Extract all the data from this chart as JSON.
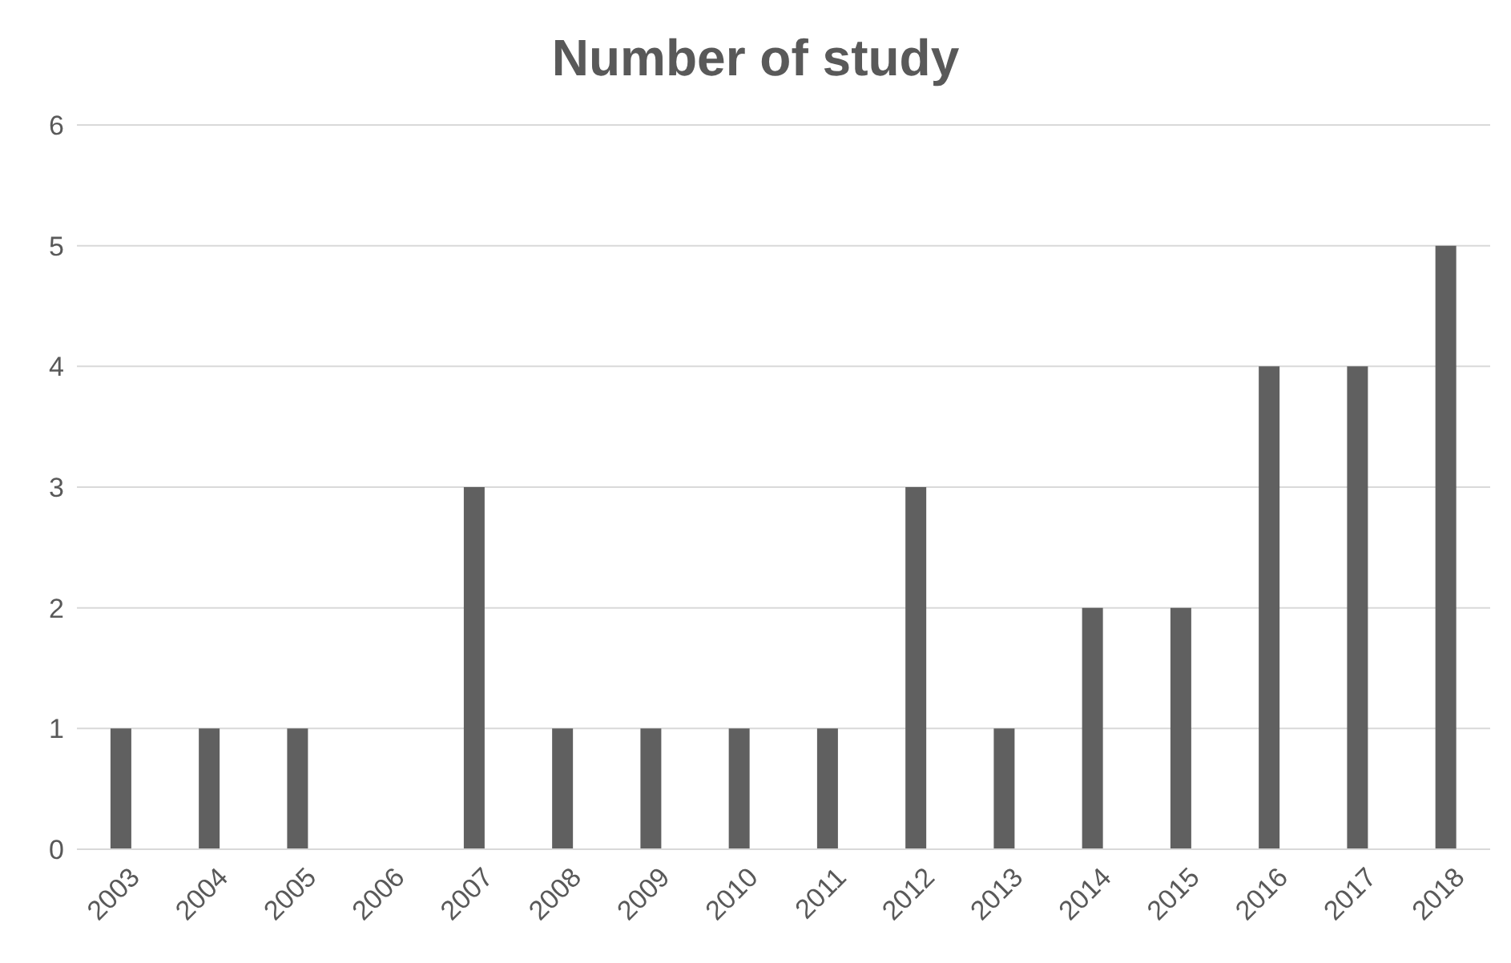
{
  "chart_data": {
    "type": "bar",
    "title": "Number of study",
    "categories": [
      "2003",
      "2004",
      "2005",
      "2006",
      "2007",
      "2008",
      "2009",
      "2010",
      "2011",
      "2012",
      "2013",
      "2014",
      "2015",
      "2016",
      "2017",
      "2018"
    ],
    "values": [
      1,
      1,
      1,
      0,
      3,
      1,
      1,
      1,
      1,
      3,
      1,
      2,
      2,
      4,
      4,
      5
    ],
    "color": "#606060",
    "ylim": [
      0,
      6
    ],
    "yticks": [
      0,
      1,
      2,
      3,
      4,
      5,
      6
    ],
    "grid": "y",
    "legend": false
  }
}
